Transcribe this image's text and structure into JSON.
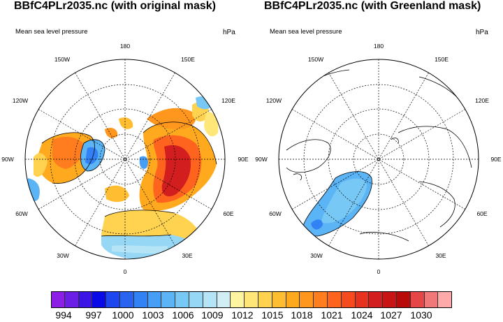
{
  "panels": [
    {
      "title": "BBfC4PLr2035.nc (with original mask)",
      "variable": "Mean sea level pressure",
      "units": "hPa",
      "lon_labels": [
        "180",
        "150E",
        "120E",
        "90E",
        "60E",
        "30E",
        "0",
        "30W",
        "60W",
        "90W",
        "120W",
        "150W"
      ]
    },
    {
      "title": "BBfC4PLr2035.nc (with Greenland mask)",
      "variable": "Mean sea level pressure",
      "units": "hPa",
      "lon_labels": [
        "180",
        "150E",
        "120E",
        "90E",
        "60E",
        "30E",
        "0",
        "30W",
        "60W",
        "90W",
        "120W",
        "150W"
      ]
    }
  ],
  "colorbar": {
    "ticks": [
      "994",
      "997",
      "1000",
      "1003",
      "1006",
      "1009",
      "1012",
      "1015",
      "1018",
      "1021",
      "1024",
      "1027",
      "1030"
    ],
    "colors": [
      "#8c1ee6",
      "#6a1ee6",
      "#3c14e6",
      "#0a0ae6",
      "#1e46f0",
      "#2864f0",
      "#3282f5",
      "#469ef5",
      "#5ab4f5",
      "#78c8f5",
      "#96d7f5",
      "#b4e4f5",
      "#d2eef5",
      "#fff5a0",
      "#ffe678",
      "#ffd250",
      "#ffbe32",
      "#ffaa1e",
      "#ff961e",
      "#ff7d1e",
      "#ff641e",
      "#f54b1e",
      "#e6321e",
      "#d21e1e",
      "#c81414",
      "#b90a0a",
      "#e64646",
      "#f07878",
      "#ffaaaa"
    ]
  }
}
